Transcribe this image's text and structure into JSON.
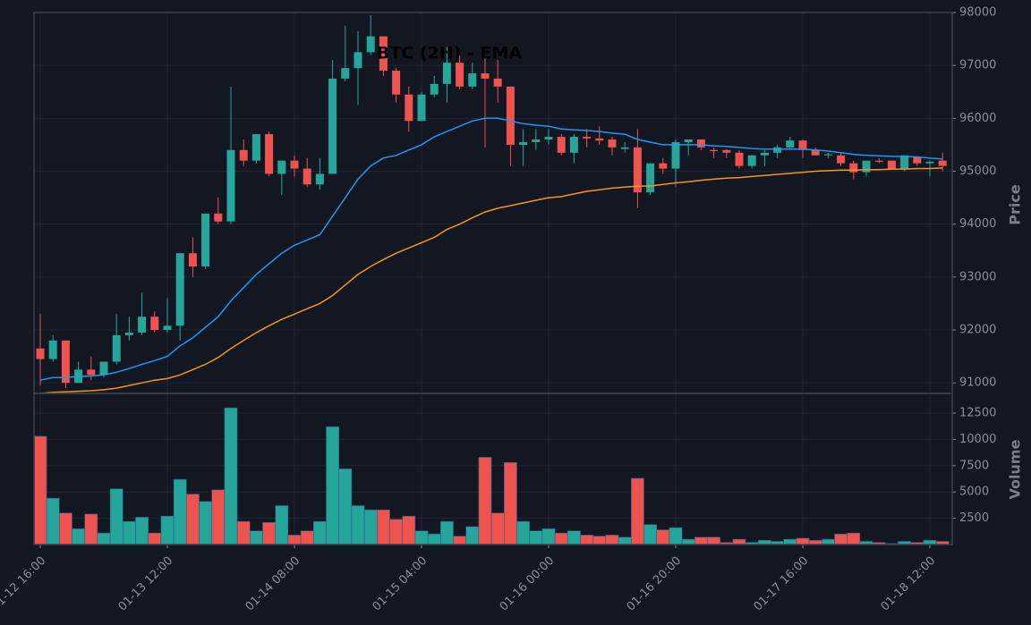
{
  "chart_data": {
    "type": "candlestick",
    "title": "BTC (2H) - EMA",
    "categories": [
      "01-12 16:00",
      null,
      null,
      null,
      null,
      null,
      null,
      null,
      null,
      null,
      "01-13 12:00",
      null,
      null,
      null,
      null,
      null,
      null,
      null,
      null,
      null,
      "01-14 08:00",
      null,
      null,
      null,
      null,
      null,
      null,
      null,
      null,
      null,
      "01-15 04:00",
      null,
      null,
      null,
      null,
      null,
      null,
      null,
      null,
      null,
      "01-16 00:00",
      null,
      null,
      null,
      null,
      null,
      null,
      null,
      null,
      null,
      "01-16 20:00",
      null,
      null,
      null,
      null,
      null,
      null,
      null,
      null,
      null,
      "01-17 16:00",
      null,
      null,
      null,
      null,
      null,
      null,
      null,
      null,
      null,
      "01-18 12:00",
      null
    ],
    "open": [
      91650,
      91450,
      91800,
      91000,
      91250,
      91150,
      91400,
      91900,
      91950,
      92250,
      92000,
      92080,
      93450,
      93200,
      94200,
      94050,
      95400,
      95200,
      95700,
      94950,
      95200,
      95050,
      94750,
      94950,
      96750,
      96950,
      97250,
      97550,
      96900,
      96450,
      95950,
      96450,
      96650,
      97050,
      96600,
      96850,
      96750,
      96600,
      95500,
      95550,
      95600,
      95650,
      95350,
      95650,
      95620,
      95600,
      95420,
      95450,
      94600,
      95150,
      95050,
      95550,
      95600,
      95400,
      95400,
      95350,
      95100,
      95300,
      95350,
      95450,
      95580,
      95400,
      95300,
      95300,
      95150,
      94980,
      95200,
      95200,
      95050,
      95270,
      95150,
      95200
    ],
    "high": [
      92300,
      91900,
      91800,
      91400,
      91500,
      91400,
      92300,
      92250,
      92700,
      92350,
      92600,
      93450,
      93750,
      94200,
      94500,
      96600,
      95600,
      95700,
      95750,
      95200,
      95300,
      95250,
      95250,
      97100,
      97750,
      97650,
      97950,
      97550,
      96950,
      96600,
      96500,
      96800,
      97350,
      97200,
      97050,
      97150,
      97100,
      96600,
      95800,
      95800,
      95800,
      95700,
      95700,
      95800,
      95850,
      95650,
      95550,
      95800,
      95150,
      95250,
      95600,
      95600,
      95600,
      95450,
      95420,
      95400,
      95300,
      95400,
      95500,
      95650,
      95600,
      95450,
      95350,
      95350,
      95200,
      95200,
      95250,
      95200,
      95300,
      95280,
      95200,
      95350
    ],
    "low": [
      90950,
      91400,
      90900,
      91000,
      91050,
      91100,
      91350,
      91800,
      91900,
      91950,
      91950,
      91800,
      93000,
      93150,
      94000,
      94000,
      95100,
      95150,
      94900,
      94550,
      94900,
      94700,
      94650,
      94950,
      96700,
      96250,
      97200,
      96800,
      96300,
      95750,
      95950,
      96400,
      96300,
      96550,
      96550,
      95450,
      96300,
      95100,
      95100,
      95400,
      95500,
      95300,
      95150,
      95450,
      95500,
      95300,
      95350,
      94300,
      94550,
      94950,
      94700,
      95300,
      95400,
      95250,
      95250,
      95050,
      95050,
      95100,
      95250,
      95400,
      95250,
      95300,
      95250,
      95100,
      94850,
      94900,
      95150,
      95050,
      95000,
      95100,
      94900,
      95000
    ],
    "close": [
      91450,
      91800,
      91000,
      91250,
      91150,
      91400,
      91900,
      91950,
      92250,
      92000,
      92080,
      93450,
      93200,
      94200,
      94050,
      95400,
      95200,
      95700,
      94950,
      95200,
      95050,
      94750,
      94950,
      96750,
      96950,
      97250,
      97550,
      96900,
      96450,
      95950,
      96450,
      96650,
      97050,
      96600,
      96850,
      96750,
      96600,
      95500,
      95550,
      95600,
      95650,
      95350,
      95650,
      95620,
      95580,
      95450,
      95450,
      94600,
      95150,
      95050,
      95550,
      95600,
      95450,
      95380,
      95350,
      95100,
      95300,
      95350,
      95450,
      95580,
      95400,
      95300,
      95320,
      95150,
      94980,
      95200,
      95180,
      95050,
      95300,
      95150,
      95180,
      95100
    ],
    "volume": [
      10300,
      4400,
      3000,
      1500,
      2900,
      1100,
      5300,
      2200,
      2600,
      1100,
      2700,
      6200,
      4800,
      4100,
      5200,
      13000,
      2200,
      1300,
      2100,
      3700,
      900,
      1300,
      2200,
      11200,
      7200,
      3700,
      3300,
      3300,
      2400,
      2700,
      1300,
      1000,
      2200,
      800,
      1700,
      8300,
      3000,
      7800,
      2200,
      1300,
      1500,
      1100,
      1300,
      900,
      800,
      900,
      700,
      6300,
      1900,
      1400,
      1600,
      500,
      700,
      700,
      200,
      500,
      200,
      400,
      300,
      500,
      600,
      400,
      500,
      1000,
      1100,
      300,
      200,
      100,
      300,
      200,
      400,
      300
    ],
    "up_color": "#26a69a",
    "down_color": "#ef5350",
    "series": [
      {
        "color": "#2196f3",
        "values": [
          91050,
          91100,
          91100,
          91120,
          91130,
          91150,
          91200,
          91270,
          91350,
          91420,
          91500,
          91700,
          91850,
          92050,
          92250,
          92550,
          92800,
          93050,
          93250,
          93450,
          93600,
          93700,
          93800,
          94150,
          94500,
          94850,
          95100,
          95250,
          95300,
          95400,
          95500,
          95650,
          95750,
          95850,
          95950,
          96000,
          96000,
          95950,
          95900,
          95870,
          95850,
          95800,
          95780,
          95770,
          95750,
          95720,
          95700,
          95600,
          95550,
          95500,
          95500,
          95500,
          95500,
          95480,
          95470,
          95450,
          95430,
          95420,
          95420,
          95420,
          95420,
          95400,
          95380,
          95350,
          95320,
          95300,
          95290,
          95280,
          95280,
          95270,
          95250,
          95230
        ]
      },
      {
        "color": "#f7931a",
        "values": [
          90800,
          90820,
          90830,
          90840,
          90850,
          90870,
          90900,
          90950,
          91000,
          91050,
          91080,
          91150,
          91250,
          91350,
          91480,
          91650,
          91800,
          91950,
          92080,
          92200,
          92300,
          92400,
          92500,
          92650,
          92850,
          93050,
          93200,
          93330,
          93450,
          93550,
          93650,
          93750,
          93900,
          94000,
          94120,
          94230,
          94300,
          94350,
          94400,
          94450,
          94500,
          94520,
          94570,
          94620,
          94650,
          94680,
          94700,
          94720,
          94720,
          94750,
          94780,
          94800,
          94830,
          94850,
          94870,
          94880,
          94900,
          94920,
          94940,
          94960,
          94980,
          95000,
          95010,
          95020,
          95020,
          95030,
          95030,
          95040,
          95040,
          95050,
          95050,
          95060
        ]
      }
    ],
    "ylabel": "Price",
    "ylim": [
      90800,
      98000
    ],
    "yticks": [
      91000,
      92000,
      93000,
      94000,
      95000,
      96000,
      97000,
      98000
    ],
    "volume_label": "Volume",
    "volume_ylim": [
      0,
      14370
    ],
    "volume_yticks": [
      2500,
      5000,
      7500,
      10000,
      12500
    ],
    "grid": true
  }
}
